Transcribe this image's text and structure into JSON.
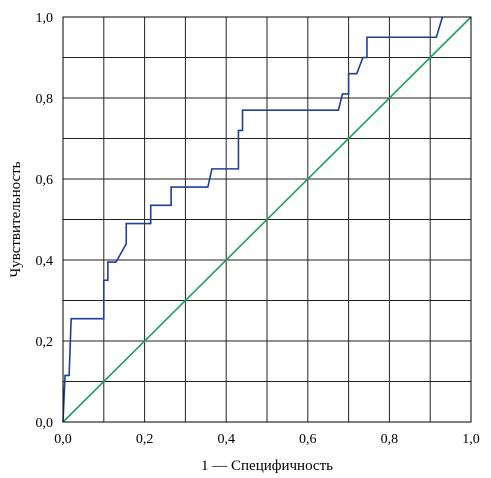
{
  "chart_data": {
    "type": "line",
    "xlabel": "1 — Специфичность",
    "ylabel": "Чувствительность",
    "xlim": [
      0,
      1
    ],
    "ylim": [
      0,
      1
    ],
    "grid": true,
    "x_ticks": [
      0,
      0.1,
      0.2,
      0.3,
      0.4,
      0.5,
      0.6,
      0.7,
      0.8,
      0.9,
      1.0
    ],
    "y_ticks": [
      0,
      0.1,
      0.2,
      0.3,
      0.4,
      0.5,
      0.6,
      0.7,
      0.8,
      0.9,
      1.0
    ],
    "x_tick_labels": [
      "0,0",
      "",
      "0,2",
      "",
      "0,4",
      "",
      "0,6",
      "",
      "0,8",
      "",
      "1,0"
    ],
    "y_tick_labels": [
      "0,0",
      "",
      "0,2",
      "",
      "0,4",
      "",
      "0,6",
      "",
      "0,8",
      "",
      "1,0"
    ],
    "series": [
      {
        "color": "#1f3f99",
        "points": [
          [
            0.0,
            0.0
          ],
          [
            0.005,
            0.115
          ],
          [
            0.015,
            0.115
          ],
          [
            0.02,
            0.255
          ],
          [
            0.1,
            0.255
          ],
          [
            0.1,
            0.35
          ],
          [
            0.11,
            0.35
          ],
          [
            0.11,
            0.395
          ],
          [
            0.13,
            0.395
          ],
          [
            0.155,
            0.44
          ],
          [
            0.155,
            0.49
          ],
          [
            0.215,
            0.49
          ],
          [
            0.215,
            0.535
          ],
          [
            0.265,
            0.535
          ],
          [
            0.265,
            0.58
          ],
          [
            0.355,
            0.58
          ],
          [
            0.365,
            0.625
          ],
          [
            0.43,
            0.625
          ],
          [
            0.43,
            0.72
          ],
          [
            0.44,
            0.72
          ],
          [
            0.44,
            0.77
          ],
          [
            0.675,
            0.77
          ],
          [
            0.685,
            0.81
          ],
          [
            0.7,
            0.81
          ],
          [
            0.7,
            0.86
          ],
          [
            0.72,
            0.86
          ],
          [
            0.735,
            0.9
          ],
          [
            0.745,
            0.9
          ],
          [
            0.745,
            0.95
          ],
          [
            0.915,
            0.95
          ],
          [
            0.93,
            1.0
          ]
        ]
      },
      {
        "color": "#1aa060",
        "points": [
          [
            0,
            0
          ],
          [
            1,
            1
          ]
        ]
      }
    ]
  }
}
